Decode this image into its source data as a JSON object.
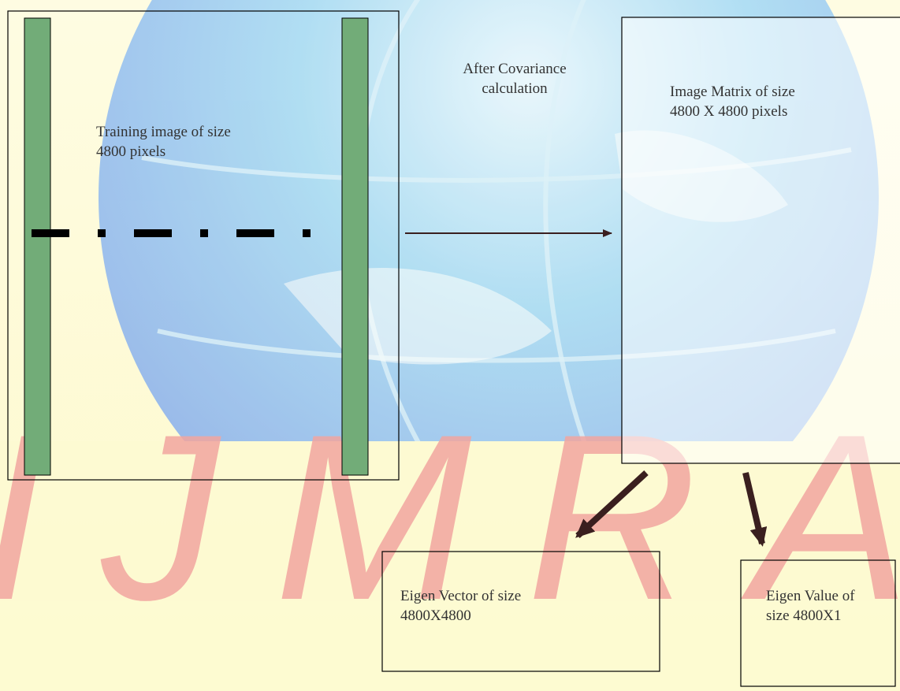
{
  "diagram": {
    "arrow_label": "After Covariance\ncalculation",
    "training_image_label": "Training image of size\n4800 pixels",
    "image_matrix_label": "Image Matrix of size\n4800 X 4800 pixels",
    "eigen_vector_label": "Eigen Vector of size\n4800X4800",
    "eigen_value_label": "Eigen Value of\nsize 4800X1",
    "watermark_text": "IJMRA"
  },
  "colors": {
    "page_tint": "#fdfbd6",
    "globe_blue": "#9fd2f0",
    "globe_edge": "#7fb8e8",
    "watermark_red": "#f2a6a0",
    "bar_green": "#72ac78",
    "arrow_dark": "#3a1f1f",
    "box_border": "#000000"
  }
}
